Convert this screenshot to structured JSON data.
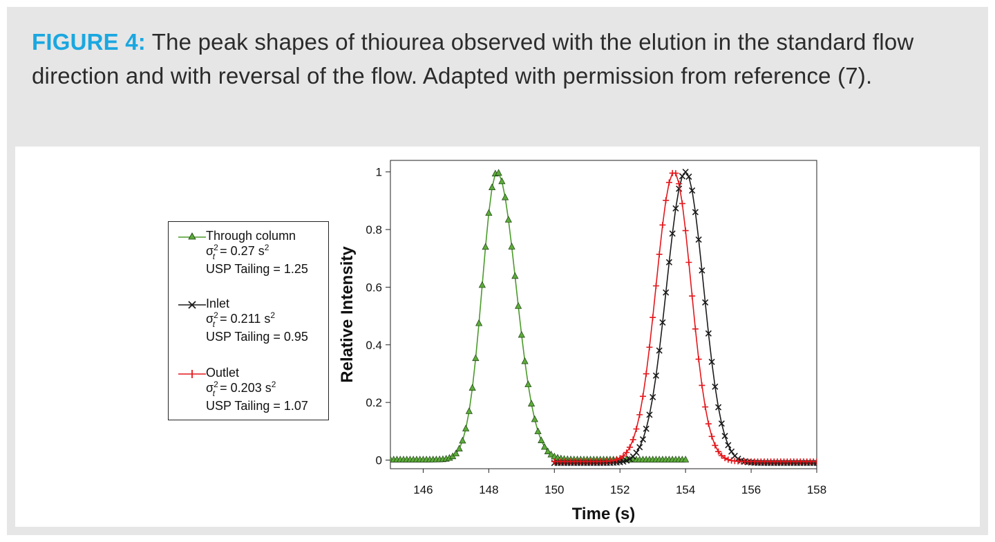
{
  "caption": {
    "label": "FIGURE 4:",
    "text": " The peak shapes of thiourea observed with the elution in the standard flow direction and with reversal of the flow. Adapted with permission from reference (7)."
  },
  "legend": {
    "entries": [
      {
        "name": "Through column",
        "variance_text": "= 0.27 s",
        "tailing_text": "USP Tailing = 1.25",
        "color": "#4a9a2a"
      },
      {
        "name": "Inlet",
        "variance_text": "= 0.211 s",
        "tailing_text": "USP Tailing = 0.95",
        "color": "#1a1a1a"
      },
      {
        "name": "Outlet",
        "variance_text": "= 0.203 s",
        "tailing_text": "USP Tailing = 1.07",
        "color": "#e3161b"
      }
    ],
    "sigma": "σ",
    "sup2": "2",
    "sub_t": "t"
  },
  "chart_data": {
    "type": "scatter",
    "xlabel": "Time (s)",
    "ylabel": "Relative Intensity",
    "xlim": [
      145,
      158
    ],
    "ylim": [
      -0.03,
      1.04
    ],
    "xticks": [
      146,
      148,
      150,
      152,
      154,
      156,
      158
    ],
    "yticks": [
      0,
      0.2,
      0.4,
      0.6,
      0.8,
      1
    ],
    "ytick_labels": [
      "0",
      "0.2",
      "0.4",
      "0.6",
      "0.8",
      "1"
    ],
    "series": [
      {
        "name": "Through column",
        "color": "#4a9a2a",
        "fill": "#5cab3a",
        "marker": "triangle",
        "x_start": 145,
        "x_end": 154,
        "peak": 148.25,
        "sigma_left": 0.45,
        "sigma_right": 0.58,
        "tail": 0.0015,
        "step": 0.1
      },
      {
        "name": "Inlet",
        "color": "#1a1a1a",
        "marker": "x",
        "x_start": 150,
        "x_end": 158,
        "peak": 154.0,
        "sigma_left": 0.58,
        "sigma_right": 0.55,
        "tail": -0.01,
        "step": 0.1
      },
      {
        "name": "Outlet",
        "color": "#e3161b",
        "marker": "plus",
        "x_start": 150,
        "x_end": 158,
        "peak": 153.65,
        "sigma_left": 0.55,
        "sigma_right": 0.52,
        "tail": -0.005,
        "step": 0.1
      }
    ]
  }
}
